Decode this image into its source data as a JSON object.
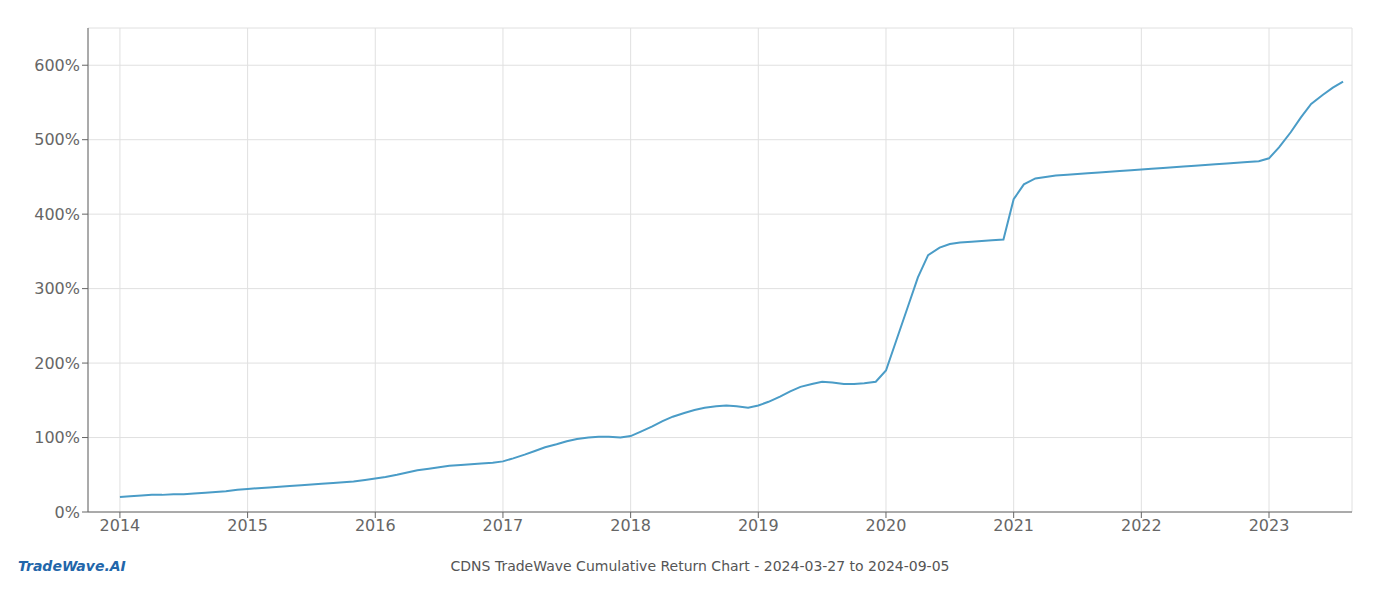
{
  "chart_data": {
    "type": "line",
    "title": "CDNS TradeWave Cumulative Return Chart - 2024-03-27 to 2024-09-05",
    "annotations": [
      "TradeWave.AI"
    ],
    "color": "#4a9cc7",
    "grid": true,
    "x": [
      2014.0,
      2014.08,
      2014.17,
      2014.25,
      2014.33,
      2014.42,
      2014.5,
      2014.58,
      2014.67,
      2014.75,
      2014.83,
      2014.92,
      2015.0,
      2015.08,
      2015.17,
      2015.25,
      2015.33,
      2015.42,
      2015.5,
      2015.58,
      2015.67,
      2015.75,
      2015.83,
      2015.92,
      2016.0,
      2016.08,
      2016.17,
      2016.25,
      2016.33,
      2016.42,
      2016.5,
      2016.58,
      2016.67,
      2016.75,
      2016.83,
      2016.92,
      2017.0,
      2017.08,
      2017.17,
      2017.25,
      2017.33,
      2017.42,
      2017.5,
      2017.58,
      2017.67,
      2017.75,
      2017.83,
      2017.92,
      2018.0,
      2018.08,
      2018.17,
      2018.25,
      2018.33,
      2018.42,
      2018.5,
      2018.58,
      2018.67,
      2018.75,
      2018.83,
      2018.92,
      2019.0,
      2019.08,
      2019.17,
      2019.25,
      2019.33,
      2019.42,
      2019.5,
      2019.58,
      2019.67,
      2019.75,
      2019.83,
      2019.92,
      2020.0,
      2020.08,
      2020.17,
      2020.25,
      2020.33,
      2020.42,
      2020.5,
      2020.58,
      2020.67,
      2020.75,
      2020.83,
      2020.92,
      2021.0,
      2021.08,
      2021.17,
      2021.25,
      2021.33,
      2021.42,
      2021.5,
      2021.58,
      2021.67,
      2021.75,
      2021.83,
      2021.92,
      2022.0,
      2022.08,
      2022.17,
      2022.25,
      2022.33,
      2022.42,
      2022.5,
      2022.58,
      2022.67,
      2022.75,
      2022.83,
      2022.92,
      2023.0,
      2023.08,
      2023.17,
      2023.25,
      2023.33,
      2023.42,
      2023.5,
      2023.58
    ],
    "values": [
      20,
      21,
      22,
      23,
      23,
      24,
      24,
      25,
      26,
      27,
      28,
      30,
      31,
      32,
      33,
      34,
      35,
      36,
      37,
      38,
      39,
      40,
      41,
      43,
      45,
      47,
      50,
      53,
      56,
      58,
      60,
      62,
      63,
      64,
      65,
      66,
      68,
      72,
      77,
      82,
      87,
      91,
      95,
      98,
      100,
      101,
      101,
      100,
      102,
      108,
      115,
      122,
      128,
      133,
      137,
      140,
      142,
      143,
      142,
      140,
      143,
      148,
      155,
      162,
      168,
      172,
      175,
      174,
      172,
      172,
      173,
      175,
      190,
      230,
      275,
      315,
      345,
      355,
      360,
      362,
      363,
      364,
      365,
      366,
      420,
      440,
      448,
      450,
      452,
      453,
      454,
      455,
      456,
      457,
      458,
      459,
      460,
      461,
      462,
      463,
      464,
      465,
      466,
      467,
      468,
      469,
      470,
      471,
      475,
      490,
      510,
      530,
      548,
      560,
      570,
      578
    ],
    "xlim": [
      2013.75,
      2023.65
    ],
    "xticks": [
      2014,
      2015,
      2016,
      2017,
      2018,
      2019,
      2020,
      2021,
      2022,
      2023
    ],
    "ylim": [
      0,
      650
    ],
    "yticks": [
      {
        "value": 0,
        "label": "0%"
      },
      {
        "value": 100,
        "label": "100%"
      },
      {
        "value": 200,
        "label": "200%"
      },
      {
        "value": 300,
        "label": "300%"
      },
      {
        "value": 400,
        "label": "400%"
      },
      {
        "value": 500,
        "label": "500%"
      },
      {
        "value": 600,
        "label": "600%"
      }
    ]
  }
}
